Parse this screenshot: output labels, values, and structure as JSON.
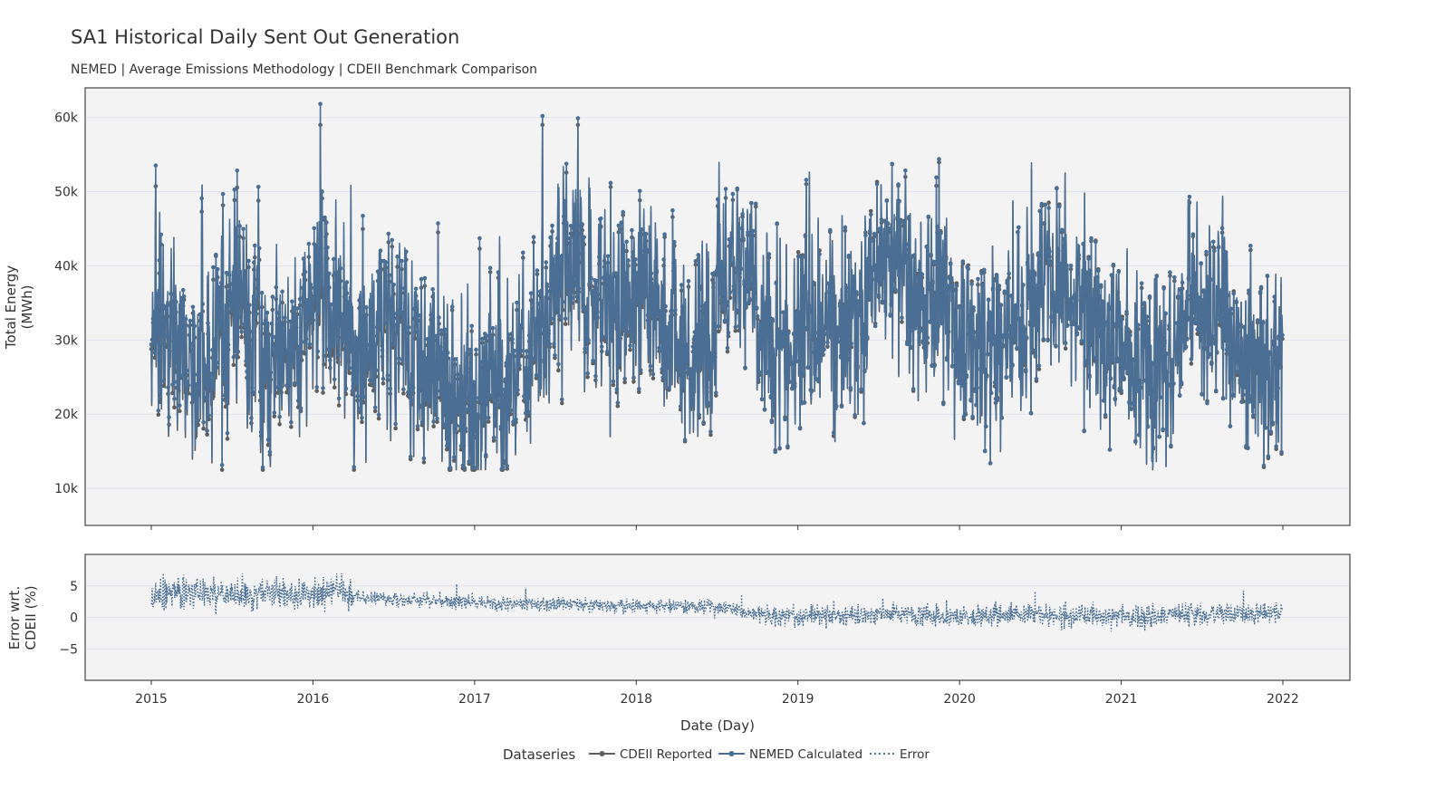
{
  "chart_data": {
    "type": "line",
    "title": "SA1 Historical Daily Sent Out Generation",
    "subtitle": "NEMED | Average Emissions Methodology | CDEII Benchmark Comparison",
    "xlabel": "Date (Day)",
    "x_range": [
      "2015-01-01",
      "2021-12-31"
    ],
    "x_ticks": [
      "2015",
      "2016",
      "2017",
      "2018",
      "2019",
      "2020",
      "2021",
      "2022"
    ],
    "grid": true,
    "legend_position": "bottom",
    "legend_title": "Dataseries",
    "panels": [
      {
        "ylabel": [
          "Total Energy",
          "(MWh)"
        ],
        "ylim": [
          5000,
          64000
        ],
        "y_ticks": [
          10000,
          20000,
          30000,
          40000,
          50000,
          60000
        ],
        "y_tick_labels": [
          "10k",
          "20k",
          "30k",
          "40k",
          "50k",
          "60k"
        ],
        "series": [
          {
            "name": "CDEII Reported",
            "color": "#5f5f5f",
            "style": "solid-with-markers",
            "monthly_mean_mwh": [
              [
                33000,
                30000,
                28000,
                26000,
                27000,
                30000,
                34000,
                31000,
                28000,
                27000,
                28000,
                31000
              ],
              [
                36000,
                33000,
                31000,
                26000,
                29000,
                30000,
                31000,
                29000,
                25000,
                22000,
                21000,
                20000
              ],
              [
                21000,
                25000,
                22000,
                24000,
                29000,
                33000,
                40000,
                38000,
                36000,
                34000,
                33000,
                35000
              ],
              [
                37000,
                33000,
                32000,
                29000,
                26000,
                30000,
                38000,
                40000,
                39000,
                31000,
                27000,
                28000
              ],
              [
                33000,
                31000,
                31000,
                32000,
                33000,
                38000,
                39000,
                40000,
                37000,
                35000,
                34000,
                33000
              ],
              [
                30000,
                28000,
                27000,
                29000,
                30000,
                35000,
                38000,
                37000,
                35000,
                31000,
                29000,
                28000
              ],
              [
                27000,
                26000,
                25000,
                27000,
                31000,
                35000,
                34000,
                33000,
                29000,
                26000,
                25000,
                26000
              ]
            ]
          },
          {
            "name": "NEMED Calculated",
            "color": "#4b6f94",
            "style": "solid-with-markers"
          }
        ]
      },
      {
        "ylabel": [
          "Error wrt.",
          "CDEII (%)"
        ],
        "ylim": [
          -10,
          10
        ],
        "y_ticks": [
          -5,
          0,
          5
        ],
        "y_tick_labels": [
          "−5",
          "0",
          "5"
        ],
        "series": [
          {
            "name": "Error",
            "color": "#4b6f94",
            "style": "dotted",
            "trend_pct": [
              [
                "2015-01-01",
                3.5
              ],
              [
                "2015-07-01",
                3.8
              ],
              [
                "2016-01-01",
                3.6
              ],
              [
                "2016-03-15",
                4.5
              ],
              [
                "2016-04-01",
                3.2
              ],
              [
                "2016-07-01",
                2.8
              ],
              [
                "2017-01-01",
                2.4
              ],
              [
                "2017-07-01",
                2.0
              ],
              [
                "2018-01-01",
                1.8
              ],
              [
                "2018-07-01",
                1.8
              ],
              [
                "2018-10-01",
                0.2
              ],
              [
                "2019-01-01",
                0.3
              ],
              [
                "2019-07-01",
                0.5
              ],
              [
                "2020-01-01",
                0.0
              ],
              [
                "2020-07-01",
                0.6
              ],
              [
                "2021-01-01",
                0.1
              ],
              [
                "2021-07-01",
                0.3
              ],
              [
                "2021-12-31",
                0.8
              ]
            ]
          }
        ]
      }
    ]
  }
}
